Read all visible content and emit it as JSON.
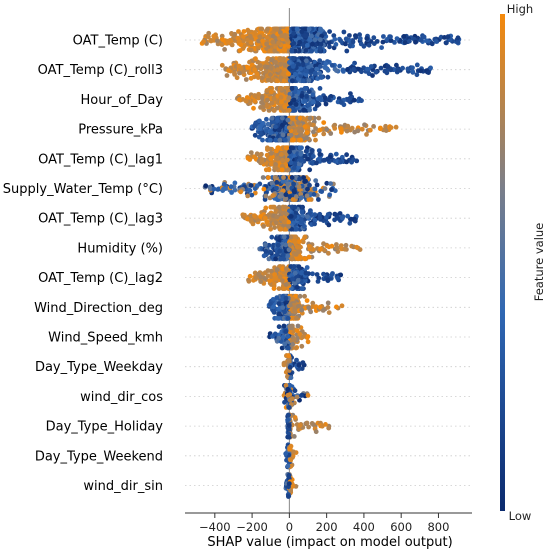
{
  "chart_data": {
    "type": "scatter",
    "subtype": "shap-beeswarm",
    "xlabel": "SHAP value (impact on model output)",
    "xlim": [
      -560,
      980
    ],
    "xticks": [
      -400,
      -200,
      0,
      200,
      400,
      600,
      800
    ],
    "xtick_labels": [
      "−400",
      "−200",
      "0",
      "200",
      "400",
      "600",
      "800"
    ],
    "colorbar": {
      "title": "Feature value",
      "high_label": "High",
      "low_label": "Low",
      "low_color": "#0b2a6e",
      "mid_color": "#3a70b8",
      "high_color": "#f5890b"
    },
    "features": [
      {
        "name": "OAT_Temp (C)",
        "range": [
          -470,
          910
        ],
        "high_side": "negative"
      },
      {
        "name": "OAT_Temp (C)_roll3",
        "range": [
          -360,
          760
        ],
        "high_side": "negative"
      },
      {
        "name": "Hour_of_Day",
        "range": [
          -280,
          390
        ],
        "high_side": "negative"
      },
      {
        "name": "Pressure_kPa",
        "range": [
          -220,
          580
        ],
        "high_side": "positive"
      },
      {
        "name": "OAT_Temp (C)_lag1",
        "range": [
          -230,
          380
        ],
        "high_side": "negative"
      },
      {
        "name": "Supply_Water_Temp (°C)",
        "range": [
          -460,
          260
        ],
        "high_side": "mixed"
      },
      {
        "name": "OAT_Temp (C)_lag3",
        "range": [
          -250,
          360
        ],
        "high_side": "negative"
      },
      {
        "name": "Humidity (%)",
        "range": [
          -160,
          380
        ],
        "high_side": "positive"
      },
      {
        "name": "OAT_Temp (C)_lag2",
        "range": [
          -220,
          290
        ],
        "high_side": "negative"
      },
      {
        "name": "Wind_Direction_deg",
        "range": [
          -120,
          300
        ],
        "high_side": "positive"
      },
      {
        "name": "Wind_Speed_kmh",
        "range": [
          -110,
          130
        ],
        "high_side": "positive"
      },
      {
        "name": "Day_Type_Weekday",
        "range": [
          -30,
          90
        ],
        "high_side": "negative"
      },
      {
        "name": "wind_dir_cos",
        "range": [
          -30,
          100
        ],
        "high_side": "mixed"
      },
      {
        "name": "Day_Type_Holiday",
        "range": [
          -10,
          240
        ],
        "high_side": "positive"
      },
      {
        "name": "Day_Type_Weekend",
        "range": [
          -20,
          40
        ],
        "high_side": "positive"
      },
      {
        "name": "wind_dir_sin",
        "range": [
          -20,
          40
        ],
        "high_side": "positive"
      }
    ]
  }
}
